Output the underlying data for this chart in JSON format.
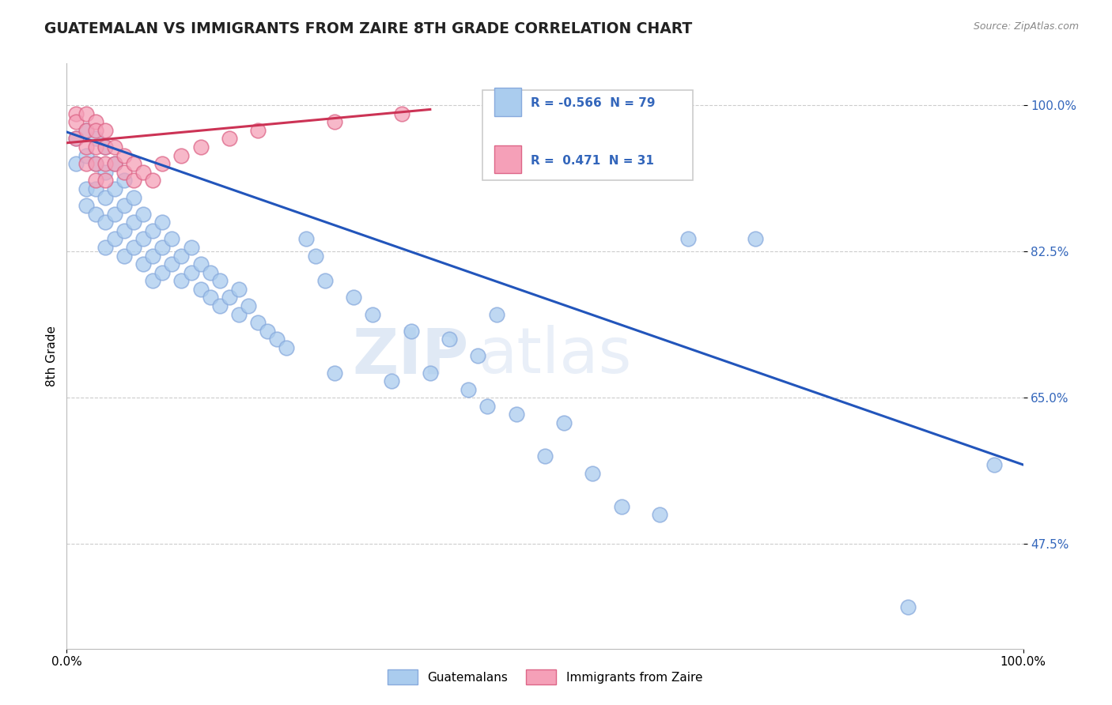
{
  "title": "GUATEMALAN VS IMMIGRANTS FROM ZAIRE 8TH GRADE CORRELATION CHART",
  "source_text": "Source: ZipAtlas.com",
  "ylabel": "8th Grade",
  "xlim": [
    0.0,
    1.0
  ],
  "ylim": [
    0.35,
    1.05
  ],
  "yticks": [
    0.475,
    0.65,
    0.825,
    1.0
  ],
  "ytick_labels": [
    "47.5%",
    "65.0%",
    "82.5%",
    "100.0%"
  ],
  "xticks": [
    0.0,
    1.0
  ],
  "xtick_labels": [
    "0.0%",
    "100.0%"
  ],
  "blue_color": "#aaccee",
  "pink_color": "#f5a0b8",
  "blue_line_color": "#2255bb",
  "pink_line_color": "#cc3355",
  "legend_r_blue": "-0.566",
  "legend_n_blue": "79",
  "legend_r_pink": "0.471",
  "legend_n_pink": "31",
  "watermark_zip": "ZIP",
  "watermark_atlas": "atlas",
  "blue_x": [
    0.01,
    0.01,
    0.02,
    0.02,
    0.02,
    0.02,
    0.03,
    0.03,
    0.03,
    0.03,
    0.04,
    0.04,
    0.04,
    0.04,
    0.04,
    0.05,
    0.05,
    0.05,
    0.05,
    0.06,
    0.06,
    0.06,
    0.06,
    0.07,
    0.07,
    0.07,
    0.08,
    0.08,
    0.08,
    0.09,
    0.09,
    0.09,
    0.1,
    0.1,
    0.1,
    0.11,
    0.11,
    0.12,
    0.12,
    0.13,
    0.13,
    0.14,
    0.14,
    0.15,
    0.15,
    0.16,
    0.16,
    0.17,
    0.18,
    0.18,
    0.19,
    0.2,
    0.21,
    0.22,
    0.23,
    0.25,
    0.26,
    0.27,
    0.28,
    0.3,
    0.32,
    0.34,
    0.36,
    0.38,
    0.4,
    0.42,
    0.43,
    0.44,
    0.45,
    0.47,
    0.5,
    0.52,
    0.55,
    0.58,
    0.62,
    0.65,
    0.72,
    0.88,
    0.97
  ],
  "blue_y": [
    0.96,
    0.93,
    0.97,
    0.94,
    0.9,
    0.88,
    0.96,
    0.93,
    0.9,
    0.87,
    0.95,
    0.92,
    0.89,
    0.86,
    0.83,
    0.93,
    0.9,
    0.87,
    0.84,
    0.91,
    0.88,
    0.85,
    0.82,
    0.89,
    0.86,
    0.83,
    0.87,
    0.84,
    0.81,
    0.85,
    0.82,
    0.79,
    0.86,
    0.83,
    0.8,
    0.84,
    0.81,
    0.82,
    0.79,
    0.83,
    0.8,
    0.81,
    0.78,
    0.8,
    0.77,
    0.79,
    0.76,
    0.77,
    0.78,
    0.75,
    0.76,
    0.74,
    0.73,
    0.72,
    0.71,
    0.84,
    0.82,
    0.79,
    0.68,
    0.77,
    0.75,
    0.67,
    0.73,
    0.68,
    0.72,
    0.66,
    0.7,
    0.64,
    0.75,
    0.63,
    0.58,
    0.62,
    0.56,
    0.52,
    0.51,
    0.84,
    0.84,
    0.4,
    0.57
  ],
  "pink_x": [
    0.01,
    0.01,
    0.01,
    0.02,
    0.02,
    0.02,
    0.02,
    0.03,
    0.03,
    0.03,
    0.03,
    0.03,
    0.04,
    0.04,
    0.04,
    0.04,
    0.05,
    0.05,
    0.06,
    0.06,
    0.07,
    0.07,
    0.08,
    0.09,
    0.1,
    0.12,
    0.14,
    0.17,
    0.2,
    0.28,
    0.35
  ],
  "pink_y": [
    0.99,
    0.98,
    0.96,
    0.99,
    0.97,
    0.95,
    0.93,
    0.98,
    0.97,
    0.95,
    0.93,
    0.91,
    0.97,
    0.95,
    0.93,
    0.91,
    0.95,
    0.93,
    0.94,
    0.92,
    0.93,
    0.91,
    0.92,
    0.91,
    0.93,
    0.94,
    0.95,
    0.96,
    0.97,
    0.98,
    0.99
  ],
  "blue_line_x0": 0.0,
  "blue_line_y0": 0.968,
  "blue_line_x1": 1.0,
  "blue_line_y1": 0.57,
  "pink_line_x0": 0.0,
  "pink_line_y0": 0.955,
  "pink_line_x1": 0.38,
  "pink_line_y1": 0.995
}
